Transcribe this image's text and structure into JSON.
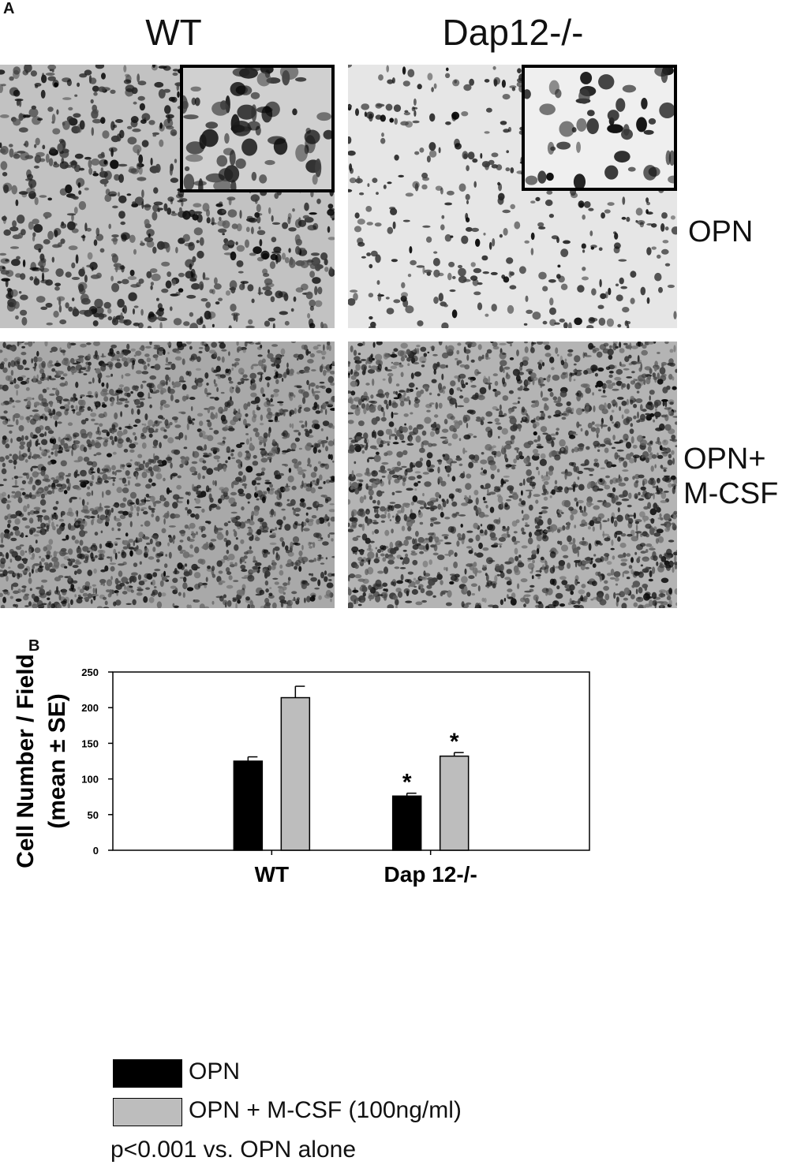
{
  "panel_a": {
    "label": "A",
    "columns": [
      "WT",
      "Dap12-/-"
    ],
    "rows": [
      {
        "label_lines": [
          "OPN"
        ]
      },
      {
        "label_lines": [
          "OPN+",
          "M-CSF"
        ]
      }
    ]
  },
  "panel_b": {
    "label": "B"
  },
  "chart_data": {
    "type": "bar",
    "categories": [
      "WT",
      "Dap 12-/-"
    ],
    "series": [
      {
        "name": "OPN",
        "values": [
          125,
          76
        ],
        "errors": [
          6,
          4
        ],
        "color": "#000000"
      },
      {
        "name": "OPN + M-CSF (100ng/ml)",
        "values": [
          214,
          132
        ],
        "errors": [
          16,
          5
        ],
        "color": "#bdbdbd"
      }
    ],
    "significance": [
      [
        false,
        true
      ],
      [
        false,
        true
      ]
    ],
    "significance_mark": "*",
    "ylabel_lines": [
      "Cell Number / Field",
      "(mean ± SE)"
    ],
    "ylim": [
      0,
      250
    ],
    "yticks": [
      0,
      50,
      100,
      150,
      200,
      250
    ],
    "grid": false
  },
  "legend": {
    "items": [
      {
        "label": "OPN",
        "color": "#000000"
      },
      {
        "label": "OPN + M-CSF (100ng/ml)",
        "color": "#bdbdbd"
      }
    ]
  },
  "footnote": "p<0.001 vs. OPN alone"
}
